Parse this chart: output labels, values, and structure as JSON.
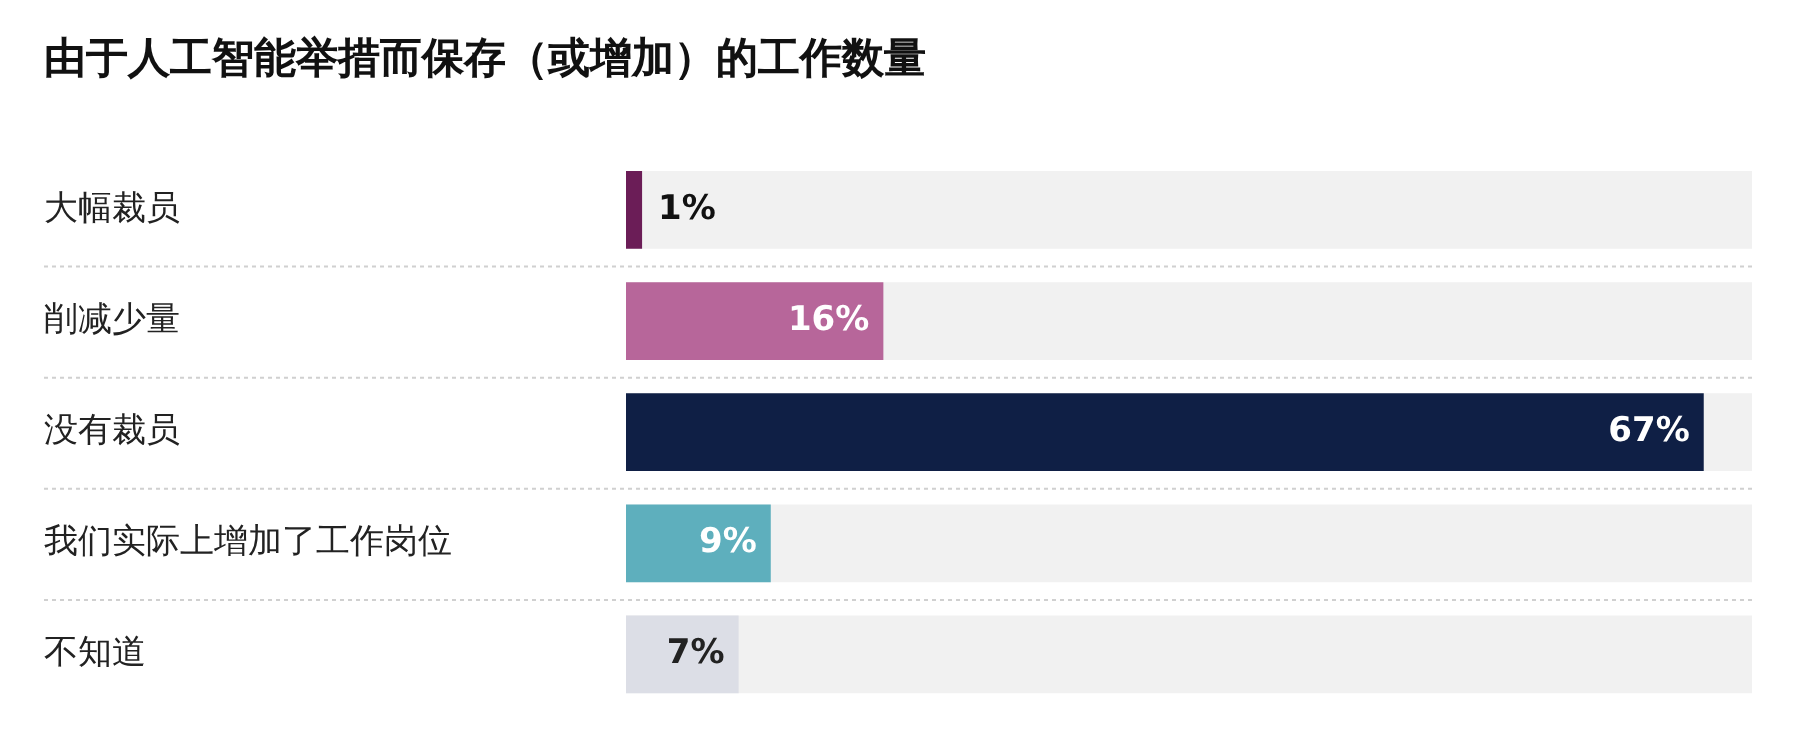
{
  "chart_data": {
    "type": "bar",
    "orientation": "horizontal",
    "title": "由于人工智能举措而保存（或增加）的工作数量",
    "categories": [
      "大幅裁员",
      "削减少量",
      "没有裁员",
      "我们实际上增加了工作岗位",
      "不知道"
    ],
    "values": [
      1,
      16,
      67,
      9,
      7
    ],
    "colors": [
      "#6b1d57",
      "#b7669a",
      "#0f1f45",
      "#5eafbd",
      "#dcdee6"
    ],
    "value_labels": [
      "1%",
      "16%",
      "67%",
      "9%",
      "7%"
    ],
    "xlim": [
      0,
      70
    ],
    "tick_labels": "y",
    "grid": false,
    "legend": false
  }
}
